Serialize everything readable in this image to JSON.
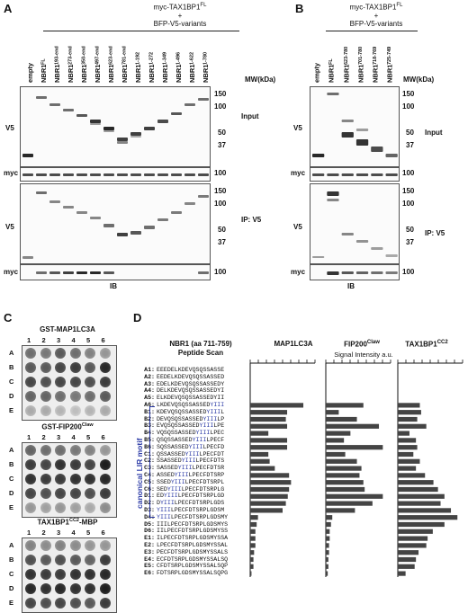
{
  "panels": {
    "A": {
      "letter": "A",
      "title_line1": "myc-TAX1BP1",
      "title_sup1": "FL",
      "plus1": "+",
      "title_line2": "BFP-V5-variants",
      "lanes": [
        "empty",
        "NBR1",
        "NBR1",
        "NBR1",
        "NBR1",
        "NBR1",
        "NBR1",
        "NBR1",
        "NBR1",
        "NBR1",
        "NBR1",
        "NBR1",
        "NBR1",
        "NBR1"
      ],
      "lane_sups": [
        "",
        "FL",
        "193-end",
        "273-end",
        "350-end",
        "497-end",
        "623-end",
        "781-end",
        "1-192",
        "1-272",
        "1-349",
        "1-496",
        "1-622",
        "1-780"
      ],
      "mw_label": "MW(kDa)",
      "input_mw": [
        "150",
        "100",
        "50",
        "37"
      ],
      "ip_mw": [
        "150",
        "100",
        "50",
        "37"
      ],
      "myc_mw": "100",
      "v5_label": "V5",
      "myc_label": "myc",
      "input_label": "Input",
      "ip_label": "IP: V5",
      "ib_label": "IB"
    },
    "B": {
      "letter": "B",
      "title_line1": "myc-TAX1BP1",
      "title_sup1": "FL",
      "plus1": "+",
      "title_line2": "BFP-V5-variants",
      "lanes": [
        "empty",
        "NBR1",
        "NBR1",
        "NBR1",
        "NBR1",
        "NBR1"
      ],
      "lane_sups": [
        "",
        "FL",
        "623-780",
        "701-780",
        "718-769",
        "725-749"
      ],
      "mw_label": "MW(kDa)",
      "input_mw": [
        "150",
        "100",
        "50",
        "37"
      ],
      "ip_mw": [
        "150",
        "100",
        "50",
        "37"
      ],
      "myc_mw": "100",
      "v5_label": "V5",
      "myc_label": "myc",
      "input_label": "Input",
      "ip_label": "IP: V5",
      "ib_label": "IB"
    },
    "C": {
      "letter": "C",
      "cols": [
        "1",
        "2",
        "3",
        "4",
        "5",
        "6"
      ],
      "rows": [
        "A",
        "B",
        "C",
        "D",
        "E"
      ],
      "blots": [
        {
          "title": "GST-MAP1LC3A",
          "sup": ""
        },
        {
          "title": "GST-FIP200",
          "sup": "Claw"
        },
        {
          "title": "TAX1BP1",
          "sup": "CC2",
          "suffix": "-MBP"
        }
      ]
    },
    "D": {
      "letter": "D",
      "scan_title1": "NBR1 (aa 711-759)",
      "scan_title2": "Peptide Scan",
      "motif_label": "canonical LIR motif",
      "signal_label": "Signal Intensity a.u.",
      "chart_titles": [
        {
          "title": "MAP1LC3A",
          "sup": ""
        },
        {
          "title": "FIP200",
          "sup": "Claw"
        },
        {
          "title": "TAX1BP1",
          "sup": "CC2"
        }
      ],
      "peptides": [
        {
          "id": "A1:",
          "pre": "EEEDELKDEVQSQSSASSE",
          "hl": "",
          "post": ""
        },
        {
          "id": "A2:",
          "pre": "EEDELKDEVQSQSSASSED",
          "hl": "",
          "post": ""
        },
        {
          "id": "A3:",
          "pre": "EDELKDEVQSQSSASSEDY",
          "hl": "",
          "post": ""
        },
        {
          "id": "A4:",
          "pre": "DELKDEVQSQSSASSEDYI",
          "hl": "",
          "post": ""
        },
        {
          "id": "A5:",
          "pre": "ELKDEVQSQSSASSEDYII",
          "hl": "",
          "post": ""
        },
        {
          "id": "A6:",
          "pre": "LKDEVQSQSSASSED",
          "hl": "YIII",
          "post": ""
        },
        {
          "id": "B1:",
          "pre": "KDEVQSQSSASSED",
          "hl": "YIII",
          "post": "L"
        },
        {
          "id": "B2:",
          "pre": "DEVQSQSSASSED",
          "hl": "YIII",
          "post": "LP"
        },
        {
          "id": "B3:",
          "pre": "EVQSQSSASSED",
          "hl": "YIII",
          "post": "LPE"
        },
        {
          "id": "B4:",
          "pre": "VQSQSSASSED",
          "hl": "YIII",
          "post": "LPEC"
        },
        {
          "id": "B5:",
          "pre": "QSQSSASSED",
          "hl": "YIII",
          "post": "LPECF"
        },
        {
          "id": "B6:",
          "pre": "SQSSASSED",
          "hl": "YIII",
          "post": "LPECFD"
        },
        {
          "id": "C1:",
          "pre": "QSSASSED",
          "hl": "YIII",
          "post": "LPECFDT"
        },
        {
          "id": "C2:",
          "pre": "SSASSED",
          "hl": "YIII",
          "post": "LPECFDTS"
        },
        {
          "id": "C3:",
          "pre": "SASSED",
          "hl": "YIII",
          "post": "LPECFDTSR"
        },
        {
          "id": "C4:",
          "pre": "ASSED",
          "hl": "YIII",
          "post": "LPECFDTSRP"
        },
        {
          "id": "C5:",
          "pre": "SSED",
          "hl": "YIII",
          "post": "LPECFDTSRPL"
        },
        {
          "id": "C6:",
          "pre": "SED",
          "hl": "YIII",
          "post": "LPECFDTSRPLG"
        },
        {
          "id": "D1:",
          "pre": "ED",
          "hl": "YIII",
          "post": "LPECFDTSRPLGD"
        },
        {
          "id": "D2:",
          "pre": "D",
          "hl": "YIII",
          "post": "LPECFDTSRPLGDS"
        },
        {
          "id": "D3:",
          "pre": "",
          "hl": "YIII",
          "post": "LPECFDTSRPLGDSM"
        },
        {
          "id": "D4:",
          "pre": "",
          "hl": "YIII",
          "post": "LPECFDTSRPLGDSMY"
        },
        {
          "id": "D5:",
          "pre": "IIILPECFDTSRPLGDSMYS",
          "hl": "",
          "post": ""
        },
        {
          "id": "D6:",
          "pre": "IILPECFDTSRPLGDSMYSS",
          "hl": "",
          "post": ""
        },
        {
          "id": "E1:",
          "pre": "ILPECFDTSRPLGDSMYSSA",
          "hl": "",
          "post": ""
        },
        {
          "id": "E2:",
          "pre": "LPECFDTSRPLGDSMYSSAL",
          "hl": "",
          "post": ""
        },
        {
          "id": "E3:",
          "pre": "PECFDTSRPLGDSMYSSALS",
          "hl": "",
          "post": ""
        },
        {
          "id": "E4:",
          "pre": "ECFDTSRPLGDSMYSSALSQ",
          "hl": "",
          "post": ""
        },
        {
          "id": "E5:",
          "pre": "CFDTSRPLGDSMYSSALSQP",
          "hl": "",
          "post": ""
        },
        {
          "id": "E6:",
          "pre": "FDTSRPLGDSMYSSALSQPG",
          "hl": "",
          "post": ""
        }
      ]
    }
  },
  "chart_data": {
    "type": "bar",
    "categories": [
      "A1",
      "A2",
      "A3",
      "A4",
      "A5",
      "A6",
      "B1",
      "B2",
      "B3",
      "B4",
      "B5",
      "B6",
      "C1",
      "C2",
      "C3",
      "C4",
      "C5",
      "C6",
      "D1",
      "D2",
      "D3",
      "D4",
      "D5",
      "D6",
      "E1",
      "E2",
      "E3",
      "E4",
      "E5",
      "E6"
    ],
    "series": [
      {
        "name": "MAP1LC3A",
        "values": [
          0,
          0,
          0,
          0,
          0,
          0.82,
          0.57,
          0.55,
          0.57,
          0.28,
          0.57,
          0.57,
          0.28,
          0.3,
          0.38,
          0.6,
          0.63,
          0.6,
          0.58,
          0.55,
          0.5,
          0.12,
          0.1,
          0.08,
          0.08,
          0.08,
          0.06,
          0.05,
          0.05,
          0.02
        ]
      },
      {
        "name": "FIP200",
        "values": [
          0,
          0,
          0,
          0,
          0,
          0.58,
          0.2,
          0.48,
          0.82,
          0.38,
          0.28,
          0.88,
          0.3,
          0.48,
          0.55,
          0.52,
          0.58,
          0.6,
          0.88,
          0.72,
          0.45,
          0.1,
          0.08,
          0.06,
          0.06,
          0.05,
          0.05,
          0.04,
          0.04,
          0.03
        ]
      },
      {
        "name": "TAX1BP1",
        "values": [
          0,
          0,
          0,
          0,
          0,
          0.34,
          0.36,
          0.3,
          0.44,
          0.18,
          0.28,
          0.3,
          0.24,
          0.34,
          0.28,
          0.42,
          0.55,
          0.62,
          0.72,
          0.66,
          0.82,
          0.92,
          0.72,
          0.54,
          0.46,
          0.44,
          0.32,
          0.28,
          0.26,
          0.12
        ]
      }
    ]
  }
}
